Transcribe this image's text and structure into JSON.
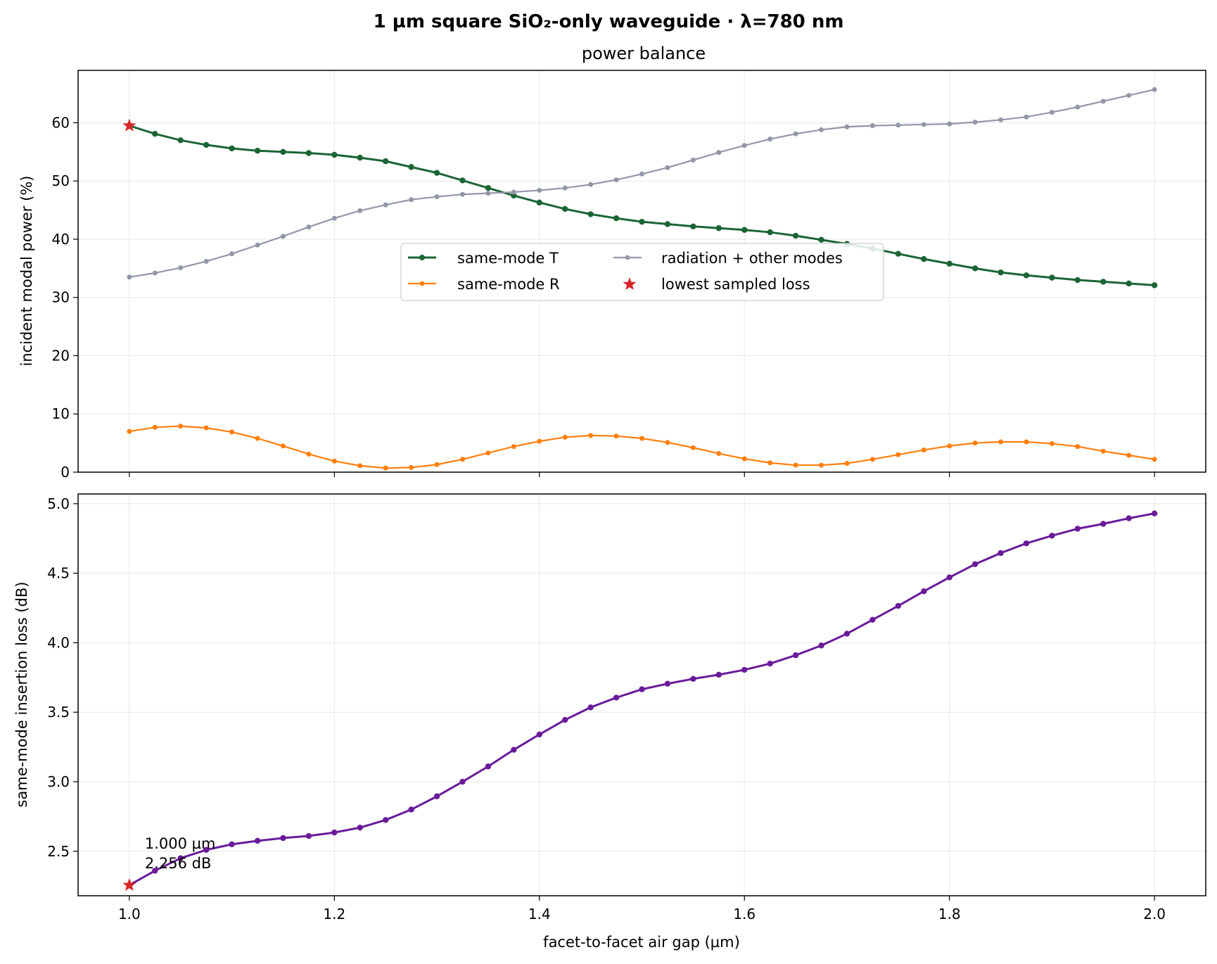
{
  "figure": {
    "suptitle": "1 µm square SiO₂-only waveguide · λ=780 nm"
  },
  "colors": {
    "same_mode_T": "#1b6535",
    "same_mode_R": "#ff7f0e",
    "radiation": "#9297a8",
    "star": "#d62728",
    "insertion_loss": "#6a1b9a",
    "grid": "#e6e6e6",
    "axes": "#000000"
  },
  "chart_data": [
    {
      "type": "line",
      "title": "power balance",
      "xlabel": "",
      "ylabel": "incident modal power (%)",
      "xlim": [
        0.95,
        2.05
      ],
      "ylim": [
        0,
        69
      ],
      "xticks": [
        1.0,
        1.2,
        1.4,
        1.6,
        1.8,
        2.0
      ],
      "xtick_labels_shown": false,
      "yticks": [
        0,
        10,
        20,
        30,
        40,
        50,
        60
      ],
      "grid": true,
      "legend": {
        "placement": "center",
        "columns": 2,
        "entries": [
          "same-mode T",
          "radiation + other modes",
          "same-mode R",
          "lowest sampled loss"
        ]
      },
      "x": [
        1.0,
        1.025,
        1.05,
        1.075,
        1.1,
        1.125,
        1.15,
        1.175,
        1.2,
        1.225,
        1.25,
        1.275,
        1.3,
        1.325,
        1.35,
        1.375,
        1.4,
        1.425,
        1.45,
        1.475,
        1.5,
        1.525,
        1.55,
        1.575,
        1.6,
        1.625,
        1.65,
        1.675,
        1.7,
        1.725,
        1.75,
        1.775,
        1.8,
        1.825,
        1.85,
        1.875,
        1.9,
        1.925,
        1.95,
        1.975,
        2.0
      ],
      "series": [
        {
          "name": "same-mode T",
          "color_key": "same_mode_T",
          "values": [
            59.5,
            58.1,
            57.0,
            56.2,
            55.6,
            55.2,
            55.0,
            54.8,
            54.5,
            54.0,
            53.4,
            52.4,
            51.4,
            50.1,
            48.8,
            47.5,
            46.3,
            45.2,
            44.3,
            43.6,
            43.0,
            42.6,
            42.2,
            41.9,
            41.6,
            41.2,
            40.6,
            39.9,
            39.2,
            38.4,
            37.5,
            36.6,
            35.8,
            35.0,
            34.3,
            33.8,
            33.4,
            33.0,
            32.7,
            32.4,
            32.1
          ]
        },
        {
          "name": "same-mode R",
          "color_key": "same_mode_R",
          "values": [
            7.0,
            7.7,
            7.9,
            7.6,
            6.9,
            5.8,
            4.5,
            3.1,
            1.9,
            1.1,
            0.7,
            0.8,
            1.3,
            2.2,
            3.3,
            4.4,
            5.3,
            6.0,
            6.3,
            6.2,
            5.8,
            5.1,
            4.2,
            3.2,
            2.3,
            1.6,
            1.2,
            1.2,
            1.5,
            2.2,
            3.0,
            3.8,
            4.5,
            5.0,
            5.2,
            5.2,
            4.9,
            4.4,
            3.6,
            2.9,
            2.2
          ]
        },
        {
          "name": "radiation + other modes",
          "color_key": "radiation",
          "values": [
            33.5,
            34.2,
            35.1,
            36.2,
            37.5,
            39.0,
            40.5,
            42.1,
            43.6,
            44.9,
            45.9,
            46.8,
            47.3,
            47.7,
            47.9,
            48.1,
            48.4,
            48.8,
            49.4,
            50.2,
            51.2,
            52.3,
            53.6,
            54.9,
            56.1,
            57.2,
            58.1,
            58.8,
            59.3,
            59.5,
            59.6,
            59.7,
            59.8,
            60.1,
            60.5,
            61.0,
            61.8,
            62.7,
            63.7,
            64.7,
            65.7
          ]
        }
      ],
      "markers": [
        {
          "name": "lowest sampled loss",
          "x": 1.0,
          "y": 59.5,
          "shape": "star",
          "color_key": "star"
        }
      ]
    },
    {
      "type": "line",
      "title": "",
      "xlabel": "facet-to-facet air gap (µm)",
      "ylabel": "same-mode insertion loss (dB)",
      "xlim": [
        0.95,
        2.05
      ],
      "ylim": [
        2.18,
        5.07
      ],
      "xticks": [
        1.0,
        1.2,
        1.4,
        1.6,
        1.8,
        2.0
      ],
      "xtick_labels": [
        "1.0",
        "1.2",
        "1.4",
        "1.6",
        "1.8",
        "2.0"
      ],
      "yticks": [
        2.5,
        3.0,
        3.5,
        4.0,
        4.5,
        5.0
      ],
      "ytick_labels": [
        "2.5",
        "3.0",
        "3.5",
        "4.0",
        "4.5",
        "5.0"
      ],
      "grid": true,
      "x": [
        1.0,
        1.025,
        1.05,
        1.075,
        1.1,
        1.125,
        1.15,
        1.175,
        1.2,
        1.225,
        1.25,
        1.275,
        1.3,
        1.325,
        1.35,
        1.375,
        1.4,
        1.425,
        1.45,
        1.475,
        1.5,
        1.525,
        1.55,
        1.575,
        1.6,
        1.625,
        1.65,
        1.675,
        1.7,
        1.725,
        1.75,
        1.775,
        1.8,
        1.825,
        1.85,
        1.875,
        1.9,
        1.925,
        1.95,
        1.975,
        2.0
      ],
      "series": [
        {
          "name": "",
          "color_key": "insertion_loss",
          "values": [
            2.256,
            2.36,
            2.45,
            2.51,
            2.55,
            2.575,
            2.595,
            2.61,
            2.635,
            2.67,
            2.725,
            2.8,
            2.895,
            3.0,
            3.11,
            3.23,
            3.34,
            3.445,
            3.535,
            3.605,
            3.665,
            3.705,
            3.74,
            3.77,
            3.805,
            3.85,
            3.91,
            3.98,
            4.065,
            4.165,
            4.265,
            4.37,
            4.47,
            4.565,
            4.645,
            4.715,
            4.77,
            4.82,
            4.855,
            4.895,
            4.93
          ]
        }
      ],
      "markers": [
        {
          "name": "lowest sampled loss",
          "x": 1.0,
          "y": 2.256,
          "shape": "star",
          "color_key": "star"
        }
      ],
      "annotation": {
        "x": 1.0,
        "y": 2.256,
        "line1": "1.000 µm",
        "line2": "2.256 dB"
      }
    }
  ]
}
